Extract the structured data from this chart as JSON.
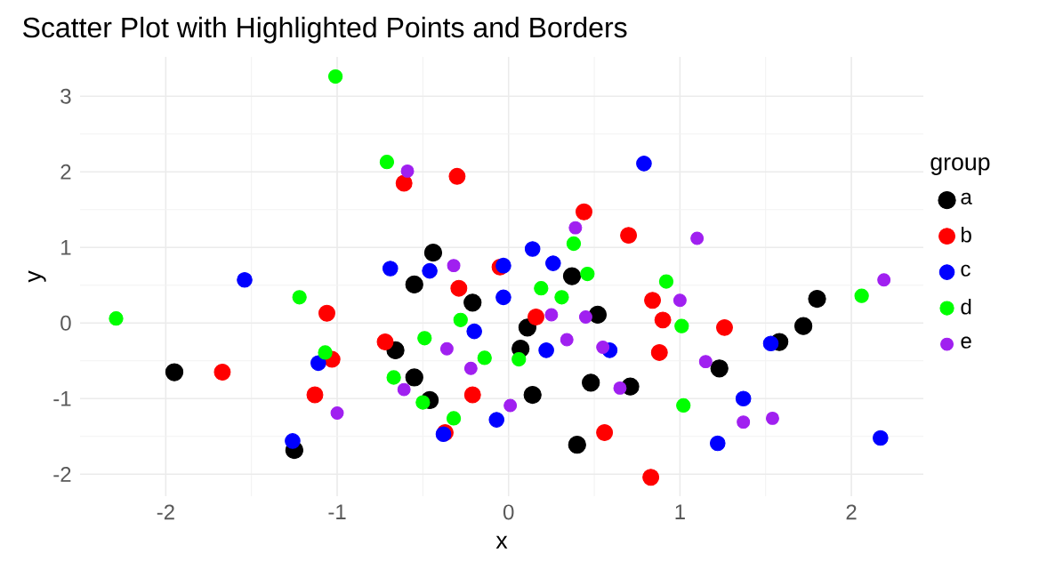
{
  "chart_data": {
    "type": "scatter",
    "title": "Scatter Plot with Highlighted Points and Borders",
    "xlabel": "x",
    "ylabel": "y",
    "legend_title": "group",
    "legend": "right",
    "grid": true,
    "xlim": [
      -2.5,
      2.42
    ],
    "ylim": [
      -2.29,
      3.52
    ],
    "xticks": [
      -2,
      -1,
      0,
      1,
      2
    ],
    "yticks": [
      -2,
      -1,
      0,
      1,
      2,
      3
    ],
    "series": [
      {
        "name": "a",
        "color": "#000000",
        "x": [
          -1.95,
          -1.25,
          -0.55,
          -0.44,
          -0.21,
          0.52,
          0.11,
          -0.66,
          0.07,
          -0.55,
          -0.46,
          0.14,
          0.48,
          0.4,
          0.71,
          0.37,
          1.8,
          1.72,
          1.58,
          1.23
        ],
        "values": [
          -0.65,
          -1.68,
          0.51,
          0.93,
          0.27,
          0.11,
          -0.06,
          -0.36,
          -0.34,
          -0.72,
          -1.02,
          -0.95,
          -0.79,
          -1.61,
          -0.84,
          0.62,
          0.32,
          -0.04,
          -0.25,
          -0.6
        ]
      },
      {
        "name": "b",
        "color": "#ff0000",
        "x": [
          -0.61,
          -0.3,
          0.44,
          0.7,
          -0.05,
          -0.29,
          0.84,
          0.16,
          0.9,
          -0.72,
          0.88,
          -0.21,
          -0.37,
          0.56,
          0.83,
          -1.06,
          -1.67,
          -1.13,
          -1.03,
          1.26
        ],
        "values": [
          1.85,
          1.94,
          1.47,
          1.16,
          0.74,
          0.46,
          0.3,
          0.08,
          0.04,
          -0.25,
          -0.39,
          -0.95,
          -1.45,
          -1.45,
          -2.04,
          0.13,
          -0.65,
          -0.95,
          -0.48,
          -0.06
        ]
      },
      {
        "name": "c",
        "color": "#0000ff",
        "x": [
          -1.54,
          0.79,
          0.14,
          -0.69,
          -0.46,
          0.26,
          -0.03,
          -0.03,
          -0.2,
          0.22,
          0.59,
          -0.07,
          -0.38,
          -1.11,
          -1.26,
          1.53,
          1.37,
          1.22,
          2.17
        ],
        "values": [
          0.57,
          2.11,
          0.98,
          0.72,
          0.69,
          0.79,
          0.76,
          0.34,
          -0.11,
          -0.36,
          -0.36,
          -1.28,
          -1.47,
          -0.53,
          -1.56,
          -0.27,
          -1.0,
          -1.59,
          -1.52
        ]
      },
      {
        "name": "d",
        "color": "#00ff00",
        "x": [
          -1.01,
          -1.22,
          -0.71,
          0.38,
          0.46,
          0.92,
          0.19,
          0.31,
          -0.28,
          -0.49,
          -0.14,
          0.06,
          -0.67,
          -0.5,
          -0.32,
          1.01,
          1.02,
          -2.29,
          -1.07,
          2.06
        ],
        "values": [
          3.26,
          0.34,
          2.13,
          1.05,
          0.65,
          0.55,
          0.46,
          0.34,
          0.04,
          -0.2,
          -0.46,
          -0.48,
          -0.72,
          -1.05,
          -1.26,
          -0.04,
          -1.09,
          0.06,
          -0.39,
          0.36
        ]
      },
      {
        "name": "e",
        "color": "#a020f0",
        "x": [
          -0.59,
          -0.32,
          0.39,
          1.1,
          2.19,
          1.0,
          0.25,
          0.45,
          0.34,
          0.55,
          -0.36,
          -0.22,
          -0.61,
          0.01,
          0.65,
          -1.0,
          1.15,
          1.37,
          1.54
        ],
        "values": [
          2.01,
          0.76,
          1.26,
          1.12,
          0.57,
          0.3,
          0.11,
          0.08,
          -0.22,
          -0.32,
          -0.34,
          -0.6,
          -0.88,
          -1.09,
          -0.86,
          -1.19,
          -0.51,
          -1.31,
          -1.26
        ]
      }
    ]
  }
}
